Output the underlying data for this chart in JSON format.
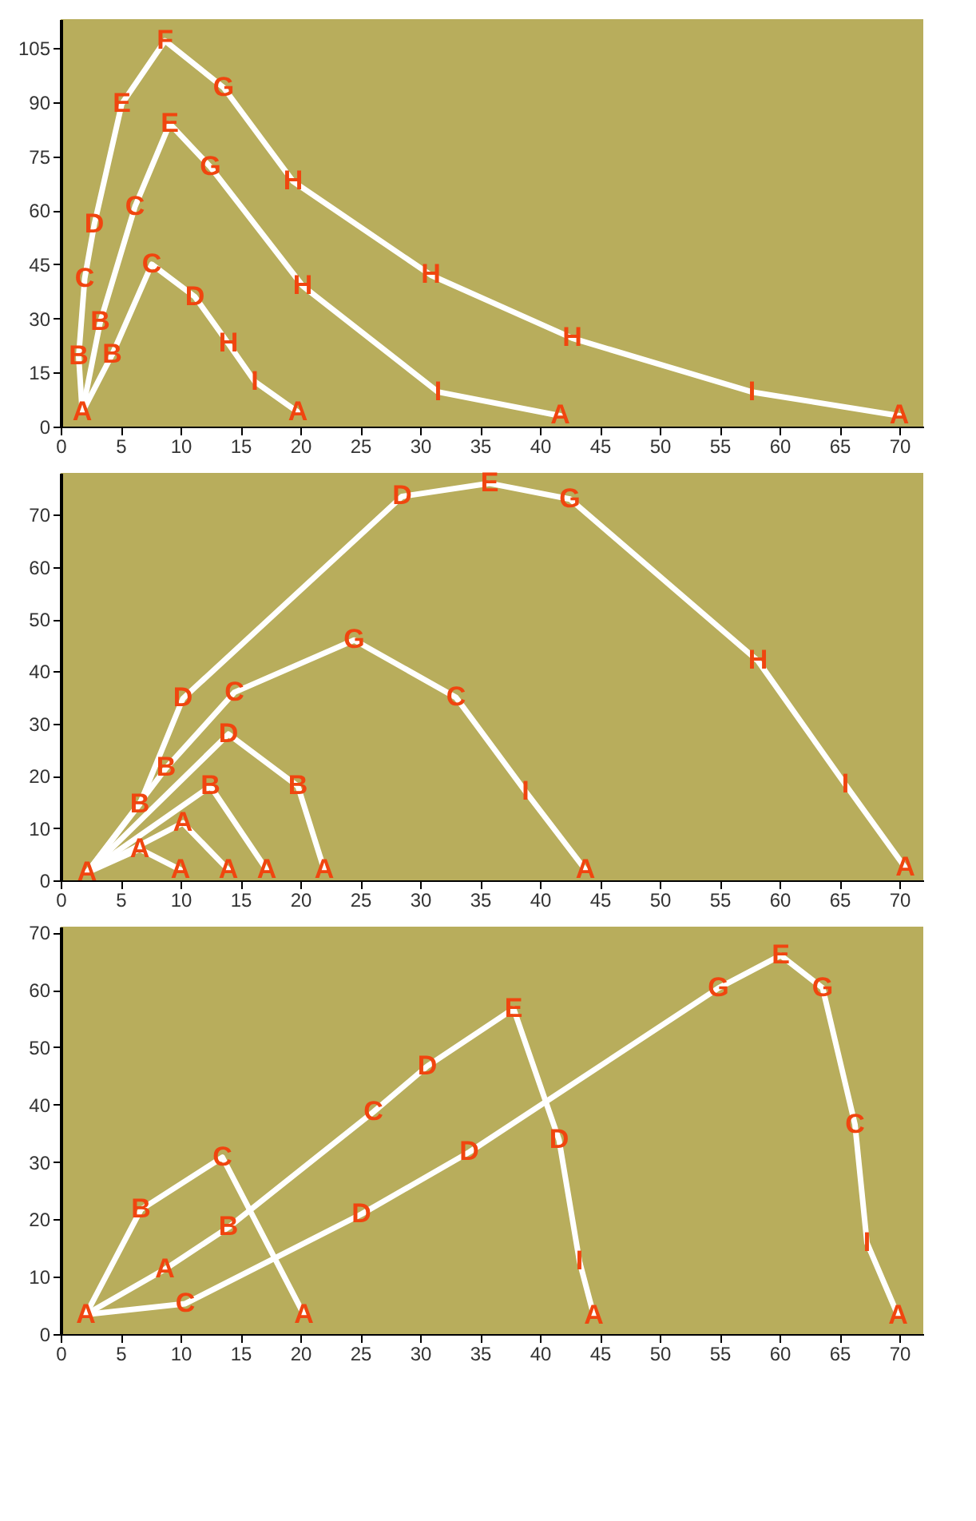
{
  "chart_data": [
    {
      "type": "line",
      "marker": "none",
      "line_style": "solid",
      "grid": false,
      "xlim": [
        0,
        72
      ],
      "xticks": [
        0,
        5,
        10,
        15,
        20,
        25,
        30,
        35,
        40,
        45,
        50,
        55,
        60,
        65,
        70
      ],
      "ylim": [
        0,
        113
      ],
      "yticks": [
        0,
        15,
        30,
        45,
        60,
        75,
        90,
        105
      ],
      "series": [
        {
          "color": "#ffffff",
          "x": [
            1.8,
            1.5,
            2,
            2.8,
            5.1,
            8.7,
            13.6,
            19.4,
            30.9,
            42.7,
            57.7,
            70
          ],
          "values": [
            4,
            19.5,
            41,
            56,
            89.5,
            107,
            94,
            68,
            42,
            24.5,
            9.6,
            3
          ],
          "value_labels": [
            "A",
            "B",
            "C",
            "D",
            "E",
            "F",
            "G",
            "H",
            "H",
            "H",
            "I",
            "A"
          ]
        },
        {
          "color": "#ffffff",
          "x": [
            1.8,
            3.3,
            6.2,
            9.1,
            12.5,
            20.2,
            31.5,
            41.7
          ],
          "values": [
            4,
            29,
            61,
            84,
            72,
            39,
            9.6,
            3
          ],
          "value_labels": [
            null,
            "B",
            "C",
            "E",
            "G",
            "H",
            "I",
            "A"
          ]
        },
        {
          "color": "#ffffff",
          "x": [
            1.8,
            4.3,
            7.6,
            11.2,
            14,
            16.2,
            19.8
          ],
          "values": [
            4,
            20,
            45,
            36,
            23,
            12.5,
            4
          ],
          "value_labels": [
            null,
            "B",
            "C",
            "D",
            "H",
            "I",
            "A"
          ]
        }
      ]
    },
    {
      "type": "line",
      "marker": "none",
      "line_style": "solid",
      "grid": false,
      "xlim": [
        0,
        72
      ],
      "xticks": [
        0,
        5,
        10,
        15,
        20,
        25,
        30,
        35,
        40,
        45,
        50,
        55,
        60,
        65,
        70
      ],
      "ylim": [
        0,
        78
      ],
      "yticks": [
        0,
        10,
        20,
        30,
        40,
        50,
        60,
        70
      ],
      "series": [
        {
          "color": "#ffffff",
          "x": [
            2.2,
            6.6,
            10.2,
            28.5,
            35.8,
            42.5,
            58.2,
            65.5,
            70.5
          ],
          "values": [
            1.5,
            14.6,
            34.8,
            73.5,
            76,
            73,
            42,
            18.3,
            2.4
          ],
          "value_labels": [
            "A",
            "B",
            "D",
            "D",
            "E",
            "G",
            "H",
            "I",
            "A"
          ]
        },
        {
          "color": "#ffffff",
          "x": [
            2.2,
            8.8,
            14.5,
            24.5,
            33,
            38.8,
            43.8
          ],
          "values": [
            1.5,
            21.5,
            36,
            46,
            35,
            17,
            2
          ],
          "value_labels": [
            null,
            "B",
            "C",
            "G",
            "C",
            "I",
            "A"
          ]
        },
        {
          "color": "#ffffff",
          "x": [
            2.2,
            14,
            19.8,
            22
          ],
          "values": [
            1.5,
            28,
            18,
            2
          ],
          "value_labels": [
            null,
            "D",
            "B",
            "A"
          ]
        },
        {
          "color": "#ffffff",
          "x": [
            2.2,
            12.5,
            17.2
          ],
          "values": [
            1.5,
            18,
            2
          ],
          "value_labels": [
            null,
            "B",
            "A"
          ]
        },
        {
          "color": "#ffffff",
          "x": [
            2.2,
            10.2,
            14
          ],
          "values": [
            1.5,
            11,
            2
          ],
          "value_labels": [
            null,
            "A",
            "A"
          ]
        },
        {
          "color": "#ffffff",
          "x": [
            2.2,
            6.6,
            10
          ],
          "values": [
            1.5,
            6,
            2
          ],
          "value_labels": [
            null,
            "A",
            "A"
          ]
        }
      ]
    },
    {
      "type": "line",
      "marker": "none",
      "line_style": "solid",
      "grid": false,
      "xlim": [
        0,
        72
      ],
      "xticks": [
        0,
        5,
        10,
        15,
        20,
        25,
        30,
        35,
        40,
        45,
        50,
        55,
        60,
        65,
        70
      ],
      "ylim": [
        0,
        71
      ],
      "yticks": [
        0,
        10,
        20,
        30,
        40,
        50,
        60,
        70
      ],
      "series": [
        {
          "color": "#ffffff",
          "x": [
            2.1,
            6.7,
            13.5,
            20.3
          ],
          "values": [
            3.4,
            21.7,
            30.8,
            3.4
          ],
          "value_labels": [
            "A",
            "B",
            "C",
            "A"
          ]
        },
        {
          "color": "#ffffff",
          "x": [
            2.1,
            8.7,
            14,
            26.1,
            30.6,
            37.8,
            41.6,
            43.3,
            44.5
          ],
          "values": [
            3.4,
            11.3,
            18.6,
            38.7,
            46.7,
            56.7,
            33.8,
            12.7,
            3.2
          ],
          "value_labels": [
            null,
            "A",
            "B",
            "C",
            "D",
            "E",
            "D",
            "I",
            "A"
          ]
        },
        {
          "color": "#ffffff",
          "x": [
            2.1,
            10.4,
            25.1,
            34.1,
            54.9,
            60.1,
            63.6,
            66.3,
            67.3,
            69.9
          ],
          "values": [
            3.4,
            5.3,
            20.9,
            31.7,
            60.3,
            66,
            60.3,
            36.5,
            15.9,
            3.2
          ],
          "value_labels": [
            null,
            "C",
            "D",
            "D",
            "G",
            "E",
            "G",
            "C",
            "I",
            "A"
          ]
        }
      ]
    }
  ]
}
